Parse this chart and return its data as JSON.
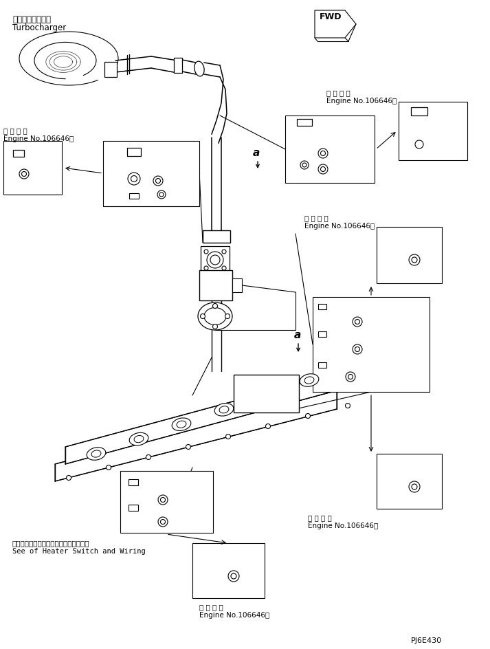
{
  "bg_color": "#ffffff",
  "lc": "#000000",
  "fig_width": 7.13,
  "fig_height": 9.44,
  "dpi": 100,
  "part_code": "PJ6E430",
  "turbo_jp": "ターボチャージャ",
  "turbo_en": "Turbocharger",
  "fwd": "FWD",
  "applicable_jp": "適 用 号 機",
  "engine_no": "Engine No.106646～",
  "heater_jp": "ヒータスイッチおよびワイヤリング参照",
  "heater_en": "See of Heater Switch and Wiring",
  "label_a": "a"
}
